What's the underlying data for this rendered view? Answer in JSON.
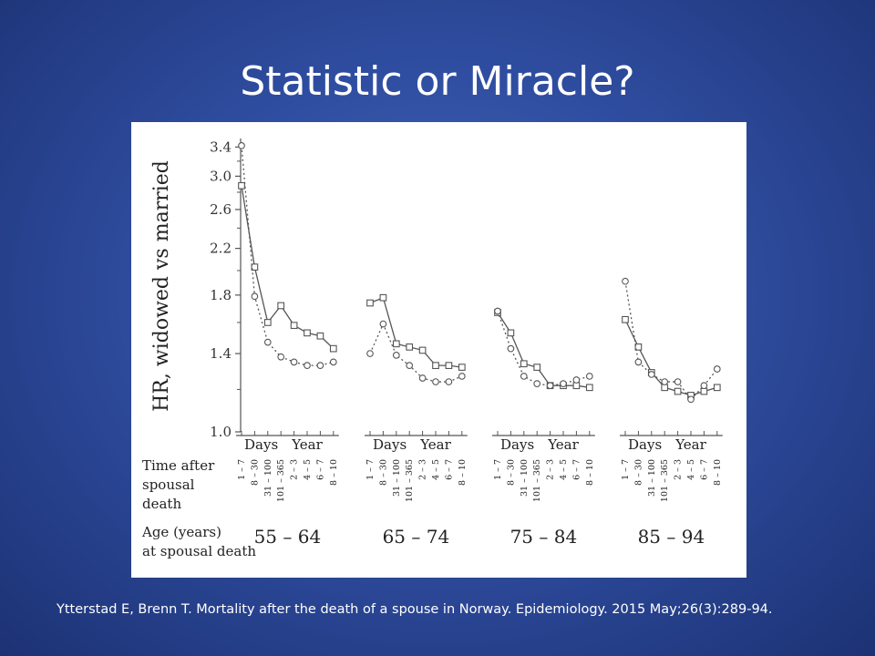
{
  "slide": {
    "title": "Statistic or Miracle?",
    "citation": "Ytterstad E, Brenn T. Mortality after the death of a spouse in Norway. Epidemiology. 2015 May;26(3):289-94."
  },
  "colors": {
    "background": "#2f4da0",
    "title_text": "#ffffff",
    "plot_ink": "#555555"
  },
  "chart_data": {
    "type": "line",
    "ylabel": "HR, widowed vs married",
    "y_scale": "log",
    "ylim": [
      1.0,
      3.5
    ],
    "y_ticks": [
      "1.0",
      "1.4",
      "1.8",
      "2.2",
      "2.6",
      "3.0",
      "3.4"
    ],
    "x_row_label_time": [
      "Time after",
      "spousal",
      "death"
    ],
    "x_row_label_age": [
      "Age (years)",
      "at spousal death"
    ],
    "period_group_labels": [
      "Days",
      "Year"
    ],
    "periods": [
      "1 – 7",
      "8 – 30",
      "31 – 100",
      "101 – 365",
      "2 – 3",
      "4 – 5",
      "6 – 7",
      "8 – 10"
    ],
    "marker_legend": [
      "circle",
      "square"
    ],
    "panels": [
      {
        "age": "55 – 64",
        "series": [
          {
            "marker": "square",
            "line": "solid",
            "values": [
              2.88,
              2.03,
              1.6,
              1.72,
              1.58,
              1.53,
              1.51,
              1.43
            ]
          },
          {
            "marker": "circle",
            "line": "dotted",
            "values": [
              3.42,
              1.79,
              1.47,
              1.38,
              1.35,
              1.33,
              1.33,
              1.35
            ]
          }
        ]
      },
      {
        "age": "65 – 74",
        "series": [
          {
            "marker": "square",
            "line": "solid",
            "values": [
              1.74,
              1.78,
              1.46,
              1.44,
              1.42,
              1.33,
              1.33,
              1.32
            ]
          },
          {
            "marker": "circle",
            "line": "dotted",
            "values": [
              1.4,
              1.59,
              1.39,
              1.33,
              1.26,
              1.24,
              1.24,
              1.27
            ]
          }
        ]
      },
      {
        "age": "75 – 84",
        "series": [
          {
            "marker": "square",
            "line": "solid",
            "values": [
              1.67,
              1.53,
              1.34,
              1.32,
              1.22,
              1.22,
              1.22,
              1.21
            ]
          },
          {
            "marker": "circle",
            "line": "dotted",
            "values": [
              1.68,
              1.43,
              1.27,
              1.23,
              1.22,
              1.23,
              1.25,
              1.27
            ]
          }
        ]
      },
      {
        "age": "85 – 94",
        "series": [
          {
            "marker": "square",
            "line": "solid",
            "values": [
              1.62,
              1.44,
              1.29,
              1.21,
              1.19,
              1.17,
              1.19,
              1.21
            ]
          },
          {
            "marker": "circle",
            "line": "dotted",
            "values": [
              1.91,
              1.35,
              1.28,
              1.24,
              1.24,
              1.15,
              1.22,
              1.31
            ]
          }
        ]
      }
    ]
  }
}
